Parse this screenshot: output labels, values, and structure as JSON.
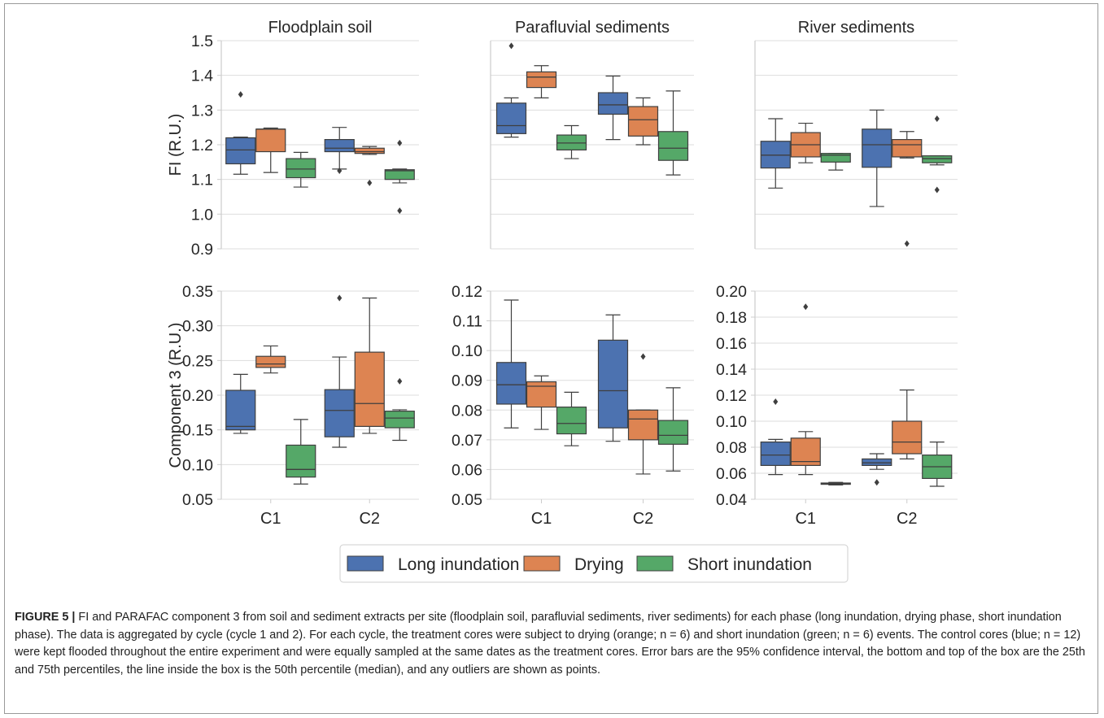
{
  "chart_data": [
    {
      "type": "box",
      "title": "Floodplain soil",
      "ylabel": "FI (R.U.)",
      "ylim": [
        0.9,
        1.5
      ],
      "yticks": [
        "0.9",
        "1.0",
        "1.1",
        "1.2",
        "1.3",
        "1.4",
        "1.5"
      ],
      "categories": [],
      "series": [
        {
          "name": "Long inundation",
          "boxes": [
            {
              "whislo": 1.115,
              "q1": 1.145,
              "med": 1.185,
              "q3": 1.22,
              "whishi": 1.222,
              "fliers": [
                1.345
              ]
            },
            {
              "whislo": 1.13,
              "q1": 1.18,
              "med": 1.19,
              "q3": 1.215,
              "whishi": 1.25,
              "fliers": [
                1.125
              ]
            }
          ]
        },
        {
          "name": "Drying",
          "boxes": [
            {
              "whislo": 1.12,
              "q1": 1.18,
              "med": 1.245,
              "q3": 1.245,
              "whishi": 1.248,
              "fliers": []
            },
            {
              "whislo": 1.172,
              "q1": 1.175,
              "med": 1.18,
              "q3": 1.19,
              "whishi": 1.195,
              "fliers": [
                1.09
              ]
            }
          ]
        },
        {
          "name": "Short inundation",
          "boxes": [
            {
              "whislo": 1.078,
              "q1": 1.105,
              "med": 1.13,
              "q3": 1.16,
              "whishi": 1.178,
              "fliers": []
            },
            {
              "whislo": 1.09,
              "q1": 1.1,
              "med": 1.125,
              "q3": 1.128,
              "whishi": 1.13,
              "fliers": [
                1.205,
                1.01
              ]
            }
          ]
        }
      ]
    },
    {
      "type": "box",
      "title": "Parafluvial sediments",
      "ylabel": "",
      "ylim": [
        0.9,
        1.5
      ],
      "yticks": [],
      "categories": [],
      "series": [
        {
          "name": "Long inundation",
          "boxes": [
            {
              "whislo": 1.222,
              "q1": 1.232,
              "med": 1.255,
              "q3": 1.32,
              "whishi": 1.335,
              "fliers": [
                1.485
              ]
            },
            {
              "whislo": 1.215,
              "q1": 1.288,
              "med": 1.315,
              "q3": 1.35,
              "whishi": 1.398,
              "fliers": []
            }
          ]
        },
        {
          "name": "Drying",
          "boxes": [
            {
              "whislo": 1.335,
              "q1": 1.365,
              "med": 1.395,
              "q3": 1.41,
              "whishi": 1.428,
              "fliers": []
            },
            {
              "whislo": 1.2,
              "q1": 1.225,
              "med": 1.272,
              "q3": 1.31,
              "whishi": 1.335,
              "fliers": []
            }
          ]
        },
        {
          "name": "Short inundation",
          "boxes": [
            {
              "whislo": 1.16,
              "q1": 1.185,
              "med": 1.205,
              "q3": 1.228,
              "whishi": 1.255,
              "fliers": []
            },
            {
              "whislo": 1.113,
              "q1": 1.155,
              "med": 1.19,
              "q3": 1.238,
              "whishi": 1.355,
              "fliers": []
            }
          ]
        }
      ]
    },
    {
      "type": "box",
      "title": "River sediments",
      "ylabel": "",
      "ylim": [
        0.9,
        1.5
      ],
      "yticks": [],
      "categories": [],
      "series": [
        {
          "name": "Long inundation",
          "boxes": [
            {
              "whislo": 1.075,
              "q1": 1.133,
              "med": 1.17,
              "q3": 1.21,
              "whishi": 1.275,
              "fliers": []
            },
            {
              "whislo": 1.022,
              "q1": 1.135,
              "med": 1.2,
              "q3": 1.245,
              "whishi": 1.3,
              "fliers": []
            }
          ]
        },
        {
          "name": "Drying",
          "boxes": [
            {
              "whislo": 1.148,
              "q1": 1.165,
              "med": 1.2,
              "q3": 1.235,
              "whishi": 1.262,
              "fliers": []
            },
            {
              "whislo": 1.162,
              "q1": 1.165,
              "med": 1.2,
              "q3": 1.215,
              "whishi": 1.238,
              "fliers": [
                0.915
              ]
            }
          ]
        },
        {
          "name": "Short inundation",
          "boxes": [
            {
              "whislo": 1.127,
              "q1": 1.15,
              "med": 1.17,
              "q3": 1.175,
              "whishi": 1.175,
              "fliers": []
            },
            {
              "whislo": 1.142,
              "q1": 1.148,
              "med": 1.16,
              "q3": 1.168,
              "whishi": 1.168,
              "fliers": [
                1.275,
                1.07
              ]
            }
          ]
        }
      ]
    },
    {
      "type": "box",
      "title": "",
      "ylabel": "Component 3 (R.U.)",
      "ylim": [
        0.05,
        0.35
      ],
      "yticks": [
        "0.05",
        "0.10",
        "0.15",
        "0.20",
        "0.25",
        "0.30",
        "0.35"
      ],
      "categories": [
        "C1",
        "C2"
      ],
      "series": [
        {
          "name": "Long inundation",
          "boxes": [
            {
              "whislo": 0.145,
              "q1": 0.15,
              "med": 0.155,
              "q3": 0.207,
              "whishi": 0.23,
              "fliers": []
            },
            {
              "whislo": 0.125,
              "q1": 0.14,
              "med": 0.178,
              "q3": 0.208,
              "whishi": 0.255,
              "fliers": [
                0.34
              ]
            }
          ]
        },
        {
          "name": "Drying",
          "boxes": [
            {
              "whislo": 0.232,
              "q1": 0.24,
              "med": 0.245,
              "q3": 0.256,
              "whishi": 0.271,
              "fliers": []
            },
            {
              "whislo": 0.145,
              "q1": 0.155,
              "med": 0.188,
              "q3": 0.262,
              "whishi": 0.34,
              "fliers": []
            }
          ]
        },
        {
          "name": "Short inundation",
          "boxes": [
            {
              "whislo": 0.072,
              "q1": 0.082,
              "med": 0.093,
              "q3": 0.128,
              "whishi": 0.165,
              "fliers": []
            },
            {
              "whislo": 0.135,
              "q1": 0.153,
              "med": 0.167,
              "q3": 0.177,
              "whishi": 0.179,
              "fliers": [
                0.22
              ]
            }
          ]
        }
      ]
    },
    {
      "type": "box",
      "title": "",
      "ylabel": "",
      "ylim": [
        0.05,
        0.12
      ],
      "yticks": [
        "0.05",
        "0.06",
        "0.07",
        "0.08",
        "0.09",
        "0.10",
        "0.11",
        "0.12"
      ],
      "categories": [
        "C1",
        "C2"
      ],
      "series": [
        {
          "name": "Long inundation",
          "boxes": [
            {
              "whislo": 0.074,
              "q1": 0.082,
              "med": 0.0885,
              "q3": 0.096,
              "whishi": 0.117,
              "fliers": []
            },
            {
              "whislo": 0.0695,
              "q1": 0.074,
              "med": 0.0865,
              "q3": 0.1035,
              "whishi": 0.112,
              "fliers": []
            }
          ]
        },
        {
          "name": "Drying",
          "boxes": [
            {
              "whislo": 0.0735,
              "q1": 0.081,
              "med": 0.088,
              "q3": 0.0895,
              "whishi": 0.0915,
              "fliers": []
            },
            {
              "whislo": 0.0585,
              "q1": 0.07,
              "med": 0.077,
              "q3": 0.08,
              "whishi": 0.08,
              "fliers": [
                0.098
              ]
            }
          ]
        },
        {
          "name": "Short inundation",
          "boxes": [
            {
              "whislo": 0.068,
              "q1": 0.072,
              "med": 0.0755,
              "q3": 0.081,
              "whishi": 0.086,
              "fliers": []
            },
            {
              "whislo": 0.0595,
              "q1": 0.0685,
              "med": 0.0715,
              "q3": 0.0765,
              "whishi": 0.0875,
              "fliers": []
            }
          ]
        }
      ]
    },
    {
      "type": "box",
      "title": "",
      "ylabel": "",
      "ylim": [
        0.04,
        0.2
      ],
      "yticks": [
        "0.04",
        "0.06",
        "0.08",
        "0.10",
        "0.12",
        "0.14",
        "0.16",
        "0.18",
        "0.20"
      ],
      "categories": [
        "C1",
        "C2"
      ],
      "series": [
        {
          "name": "Long inundation",
          "boxes": [
            {
              "whislo": 0.059,
              "q1": 0.066,
              "med": 0.074,
              "q3": 0.084,
              "whishi": 0.086,
              "fliers": [
                0.115
              ]
            },
            {
              "whislo": 0.063,
              "q1": 0.066,
              "med": 0.068,
              "q3": 0.071,
              "whishi": 0.075,
              "fliers": [
                0.053
              ]
            }
          ]
        },
        {
          "name": "Drying",
          "boxes": [
            {
              "whislo": 0.059,
              "q1": 0.066,
              "med": 0.069,
              "q3": 0.087,
              "whishi": 0.092,
              "fliers": [
                0.188
              ]
            },
            {
              "whislo": 0.071,
              "q1": 0.075,
              "med": 0.084,
              "q3": 0.1,
              "whishi": 0.124,
              "fliers": []
            }
          ]
        },
        {
          "name": "Short inundation",
          "boxes": [
            {
              "whislo": 0.051,
              "q1": 0.0515,
              "med": 0.052,
              "q3": 0.0525,
              "whishi": 0.053,
              "fliers": []
            },
            {
              "whislo": 0.05,
              "q1": 0.056,
              "med": 0.065,
              "q3": 0.074,
              "whishi": 0.084,
              "fliers": []
            }
          ]
        }
      ]
    }
  ],
  "legend": {
    "items": [
      {
        "label": "Long inundation",
        "color": "#4c72b0"
      },
      {
        "label": "Drying",
        "color": "#dd8452"
      },
      {
        "label": "Short inundation",
        "color": "#55a868"
      }
    ]
  },
  "colors": {
    "long": "#4c72b0",
    "drying": "#dd8452",
    "short": "#55a868",
    "axis": "#cccccc",
    "grid": "#dddddd",
    "whisker": "#3f3f3f"
  },
  "caption": {
    "label": "FIGURE 5 |",
    "text": "FI and PARAFAC component 3 from soil and sediment extracts per site (floodplain soil, parafluvial sediments, river sediments) for each phase (long inundation, drying phase, short inundation phase). The data is aggregated by cycle (cycle 1 and 2). For each cycle, the treatment cores were subject to drying (orange; n = 6) and short inundation (green; n = 6) events. The control cores (blue; n = 12) were kept flooded throughout the entire experiment and were equally sampled at the same dates as the treatment cores. Error bars are the 95% confidence interval, the bottom and top of the box are the 25th and 75th percentiles, the line inside the box is the 50th percentile (median), and any outliers are shown as points."
  }
}
